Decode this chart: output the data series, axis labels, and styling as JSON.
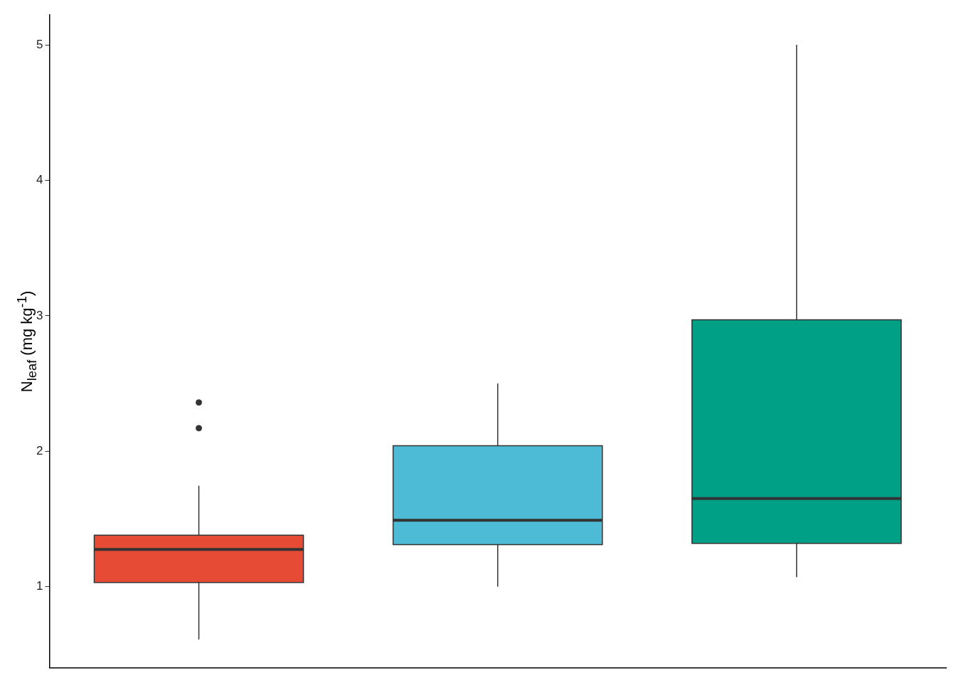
{
  "chart_data": {
    "type": "box",
    "ylabel": "N$_{leaf}$ (mg kg$^{-1}$)",
    "categories": [
      null,
      null,
      null
    ],
    "colors": [
      "#e64b35",
      "#4dbbd5",
      "#00a087"
    ],
    "boxes": [
      {
        "low": 0.61,
        "q1": 1.03,
        "median": 1.275,
        "q3": 1.38,
        "high": 1.745,
        "outliers": [
          2.17,
          2.36
        ]
      },
      {
        "low": 1.0,
        "q1": 1.31,
        "median": 1.49,
        "q3": 2.04,
        "high": 2.5
      },
      {
        "low": 1.07,
        "q1": 1.32,
        "median": 1.65,
        "q3": 2.97,
        "high": 5.0
      }
    ],
    "ylim": [
      0.4,
      5.22
    ],
    "yticks": [
      1,
      2,
      3,
      4,
      5
    ],
    "grid": false,
    "legend": false
  }
}
